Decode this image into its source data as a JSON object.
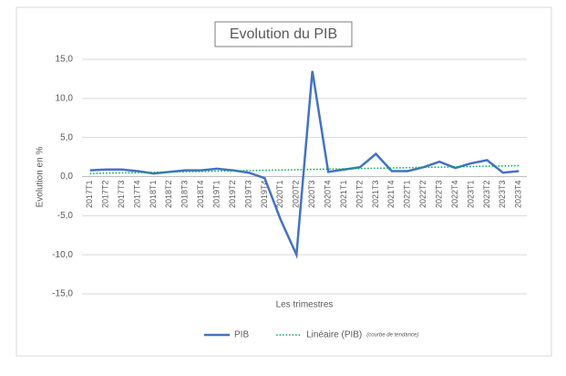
{
  "chart_data": {
    "type": "line",
    "title": "Evolution du PIB",
    "x_label": "Les trimestres",
    "y_label": "Evolution en %",
    "categories": [
      "2017T1",
      "2017T2",
      "2017T3",
      "2017T4",
      "2018T1",
      "2018T2",
      "2018T3",
      "2018T4",
      "2019T1",
      "2019T2",
      "2019T3",
      "2019T4",
      "2020T1",
      "2020T2",
      "2020T3",
      "2020T4",
      "2021T1",
      "2021T2",
      "2021T3",
      "2021T4",
      "2022T1",
      "2022T2",
      "2022T3",
      "2022T4",
      "2023T1",
      "2023T2",
      "2023T3",
      "2023T4"
    ],
    "series": [
      {
        "name": "PIB",
        "color": "#4472c4",
        "style": "solid",
        "values": [
          0.8,
          0.9,
          0.9,
          0.7,
          0.4,
          0.6,
          0.8,
          0.8,
          1.0,
          0.8,
          0.5,
          -0.2,
          -5.5,
          -10.0,
          13.5,
          0.6,
          0.9,
          1.2,
          2.9,
          0.7,
          0.7,
          1.2,
          1.9,
          1.1,
          1.7,
          2.1,
          0.5,
          0.7
        ]
      },
      {
        "name": "Linéaire (PIB)",
        "color": "#00a651",
        "style": "dotted",
        "values": [
          0.4,
          0.44,
          0.47,
          0.51,
          0.55,
          0.59,
          0.62,
          0.66,
          0.7,
          0.73,
          0.77,
          0.81,
          0.84,
          0.88,
          0.92,
          0.96,
          0.99,
          1.03,
          1.07,
          1.1,
          1.14,
          1.18,
          1.21,
          1.25,
          1.29,
          1.33,
          1.36,
          1.4
        ]
      }
    ],
    "legend_note": "(courbe de tendance)",
    "ylim": [
      -15,
      15
    ],
    "yticks": [
      {
        "value": -15,
        "label": "-15,0"
      },
      {
        "value": -10,
        "label": "-10,0"
      },
      {
        "value": -5,
        "label": "-5,0"
      },
      {
        "value": 0,
        "label": "0,0"
      },
      {
        "value": 5,
        "label": "5,0"
      },
      {
        "value": 10,
        "label": "10,0"
      },
      {
        "value": 15,
        "label": "15,0"
      }
    ],
    "grid": true,
    "legend": "bottom"
  }
}
